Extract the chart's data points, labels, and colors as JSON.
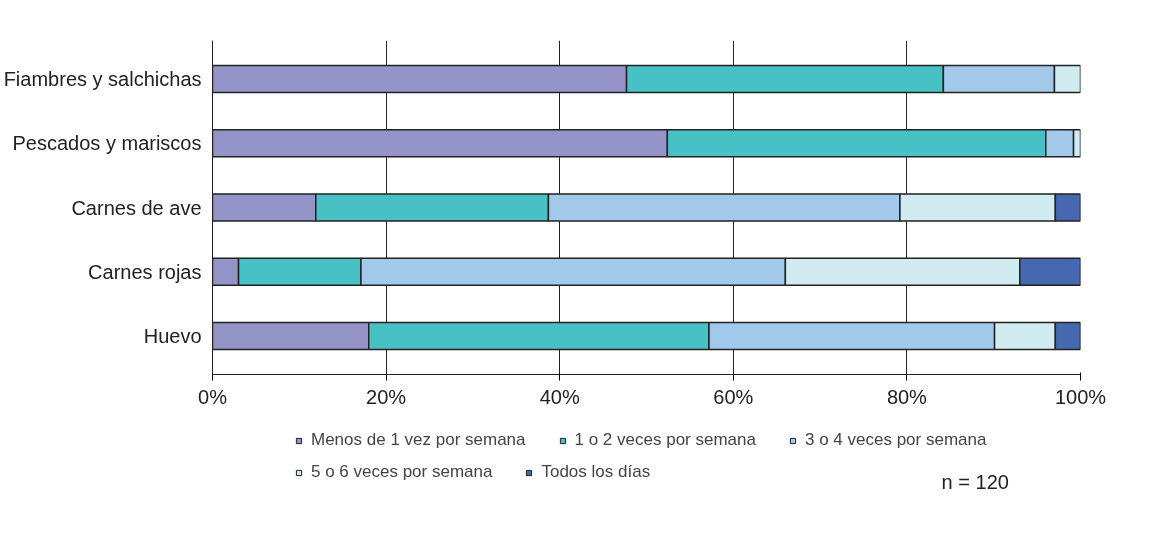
{
  "chart_data": {
    "type": "bar",
    "orientation": "horizontal",
    "stacked": true,
    "categories": [
      "Fiambres y salchichas",
      "Pescados y mariscos",
      "Carnes de ave",
      "Carnes rojas",
      "Huevo"
    ],
    "series": [
      {
        "name": "Menos de 1 vez por semana",
        "color": "#9594c8",
        "values": [
          47.7,
          52.4,
          11.9,
          3.0,
          18.0
        ]
      },
      {
        "name": "1 o 2 veces por semana",
        "color": "#48c1c4",
        "values": [
          36.5,
          43.6,
          26.8,
          14.1,
          39.2
        ]
      },
      {
        "name": "3 o 4 veces por semana",
        "color": "#a2c8ea",
        "values": [
          12.8,
          3.2,
          40.5,
          48.9,
          32.9
        ]
      },
      {
        "name": "5 o 6 veces por semana",
        "color": "#d0ecf1",
        "values": [
          3.0,
          0.8,
          17.9,
          27.0,
          7.0
        ]
      },
      {
        "name": "Todos los días",
        "color": "#4767b0",
        "values": [
          null,
          null,
          2.9,
          7.0,
          2.9
        ]
      }
    ],
    "xlim": [
      0,
      100
    ],
    "xticks": [
      {
        "value": 0,
        "label": "0%"
      },
      {
        "value": 20,
        "label": "20%"
      },
      {
        "value": 40,
        "label": "40%"
      },
      {
        "value": 60,
        "label": "60%"
      },
      {
        "value": 80,
        "label": "80%"
      },
      {
        "value": 100,
        "label": "100%"
      }
    ],
    "grid": "x",
    "legend": "bottom",
    "annotations": [
      "n = 120"
    ]
  }
}
